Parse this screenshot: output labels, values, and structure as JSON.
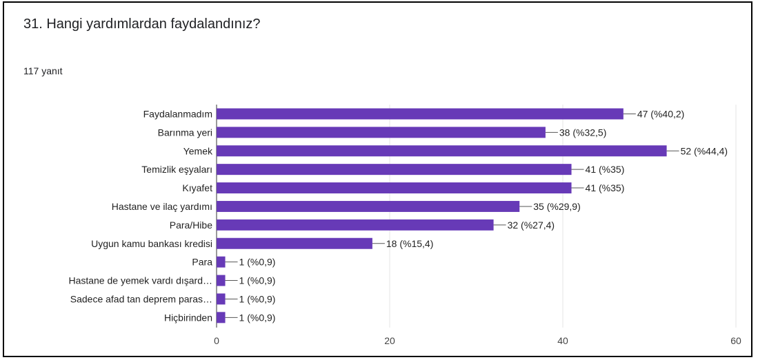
{
  "question": {
    "title": "31. Hangi yardımlardan faydalandınız?",
    "response_count": "117 yanıt"
  },
  "colors": {
    "bar": "#673ab7",
    "grid": "#e6e6e6",
    "axis": "#333333"
  },
  "chart_data": {
    "type": "bar",
    "orientation": "horizontal",
    "categories": [
      "Faydalanmadım",
      "Barınma yeri",
      "Yemek",
      "Temizlik eşyaları",
      "Kıyafet",
      "Hastane ve ilaç yardımı",
      "Para/Hibe",
      "Uygun kamu bankası kredisi",
      "Para",
      "Hastane de yemek vardı dışard…",
      "Sadece afad tan deprem paras…",
      "Hiçbirinden"
    ],
    "values": [
      47,
      38,
      52,
      41,
      41,
      35,
      32,
      18,
      1,
      1,
      1,
      1
    ],
    "value_labels": [
      "47 (%40,2)",
      "38 (%32,5)",
      "52 (%44,4)",
      "41 (%35)",
      "41 (%35)",
      "35 (%29,9)",
      "32 (%27,4)",
      "18 (%15,4)",
      "1 (%0,9)",
      "1 (%0,9)",
      "1 (%0,9)",
      "1 (%0,9)"
    ],
    "xlim": [
      0,
      60
    ],
    "xticks": [
      "0",
      "20",
      "40",
      "60"
    ],
    "grid": true
  }
}
